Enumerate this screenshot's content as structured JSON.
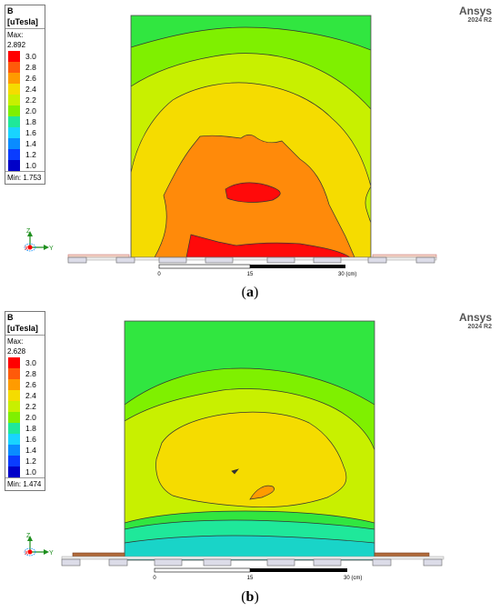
{
  "legend_scale": [
    "3.0",
    "2.8",
    "2.6",
    "2.4",
    "2.2",
    "2.0",
    "1.8",
    "1.6",
    "1.4",
    "1.2",
    "1.0"
  ],
  "legend_colors": [
    "#ff0000",
    "#ff5a0a",
    "#ff9b00",
    "#f5dc00",
    "#c8f000",
    "#7ff000",
    "#1fe89a",
    "#19d4ff",
    "#0a8cff",
    "#0a3cff",
    "#0000c8"
  ],
  "panels": [
    {
      "label": "a",
      "legend": {
        "title": "B",
        "unit": "[uTesla]",
        "max": "Max: 2.892",
        "min": "Min: 1.753"
      },
      "brand": {
        "name": "Ansys",
        "version": "2024 R2"
      },
      "scale_ticks": [
        "0",
        "15",
        "30 (cm)"
      ]
    },
    {
      "label": "b",
      "legend": {
        "title": "B",
        "unit": "[uTesla]",
        "max": "Max: 2.628",
        "min": "Min: 1.474"
      },
      "brand": {
        "name": "Ansys",
        "version": "2024 R2"
      },
      "scale_ticks": [
        "0",
        "15",
        "30 (cm)"
      ]
    }
  ],
  "axis_labels": {
    "z": "Z",
    "x": "X",
    "y": "Y"
  }
}
